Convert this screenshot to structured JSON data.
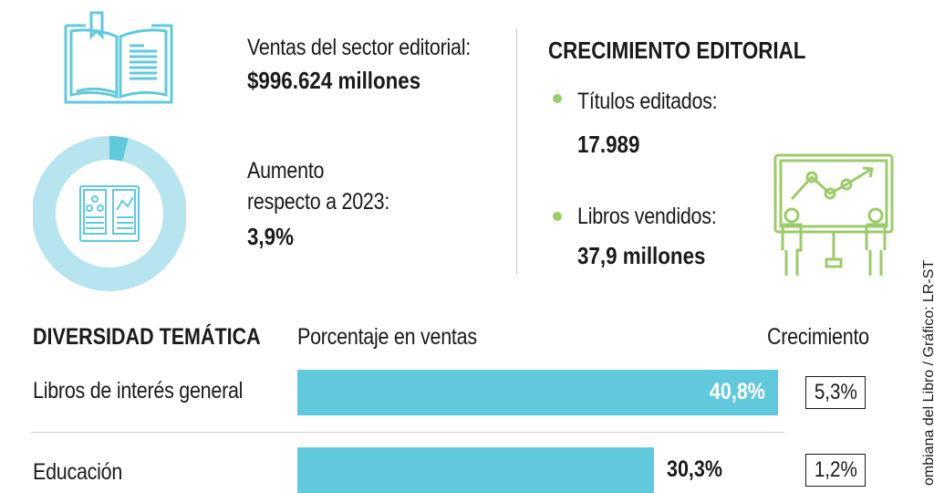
{
  "ventas": {
    "label": "Ventas del sector editorial:",
    "value": "$996.624 millones"
  },
  "aumento": {
    "label_line1": "Aumento",
    "label_line2": "respecto a 2023:",
    "value": "3,9%",
    "donut_fraction": 0.039
  },
  "crecimiento_editorial": {
    "title": "CRECIMIENTO EDITORIAL",
    "items": [
      {
        "label": "Títulos editados:",
        "value": "17.989"
      },
      {
        "label": "Libros vendidos:",
        "value": "37,9 millones"
      }
    ]
  },
  "diversidad": {
    "title": "DIVERSIDAD TEMÁTICA",
    "col_sales": "Porcentaje en ventas",
    "col_growth": "Crecimiento"
  },
  "source": "ombiana del Libro / Gráfico: LR-ST",
  "colors": {
    "bar": "#61c9dc",
    "donut_main": "#b6e4ef",
    "donut_accent": "#61c9dc",
    "icon_blue": "#61c9dc",
    "icon_green": "#9ccb6a"
  },
  "chart_data": {
    "type": "bar",
    "title": "DIVERSIDAD TEMÁTICA",
    "categories": [
      "Libros de interés general",
      "Educación"
    ],
    "series": [
      {
        "name": "Porcentaje en ventas",
        "values": [
          40.8,
          30.3
        ]
      },
      {
        "name": "Crecimiento",
        "values": [
          5.3,
          1.2
        ]
      }
    ],
    "value_labels": [
      "40,8%",
      "30,3%"
    ],
    "growth_labels": [
      "5,3%",
      "1,2%"
    ],
    "xlim": [
      0,
      40.8
    ]
  }
}
